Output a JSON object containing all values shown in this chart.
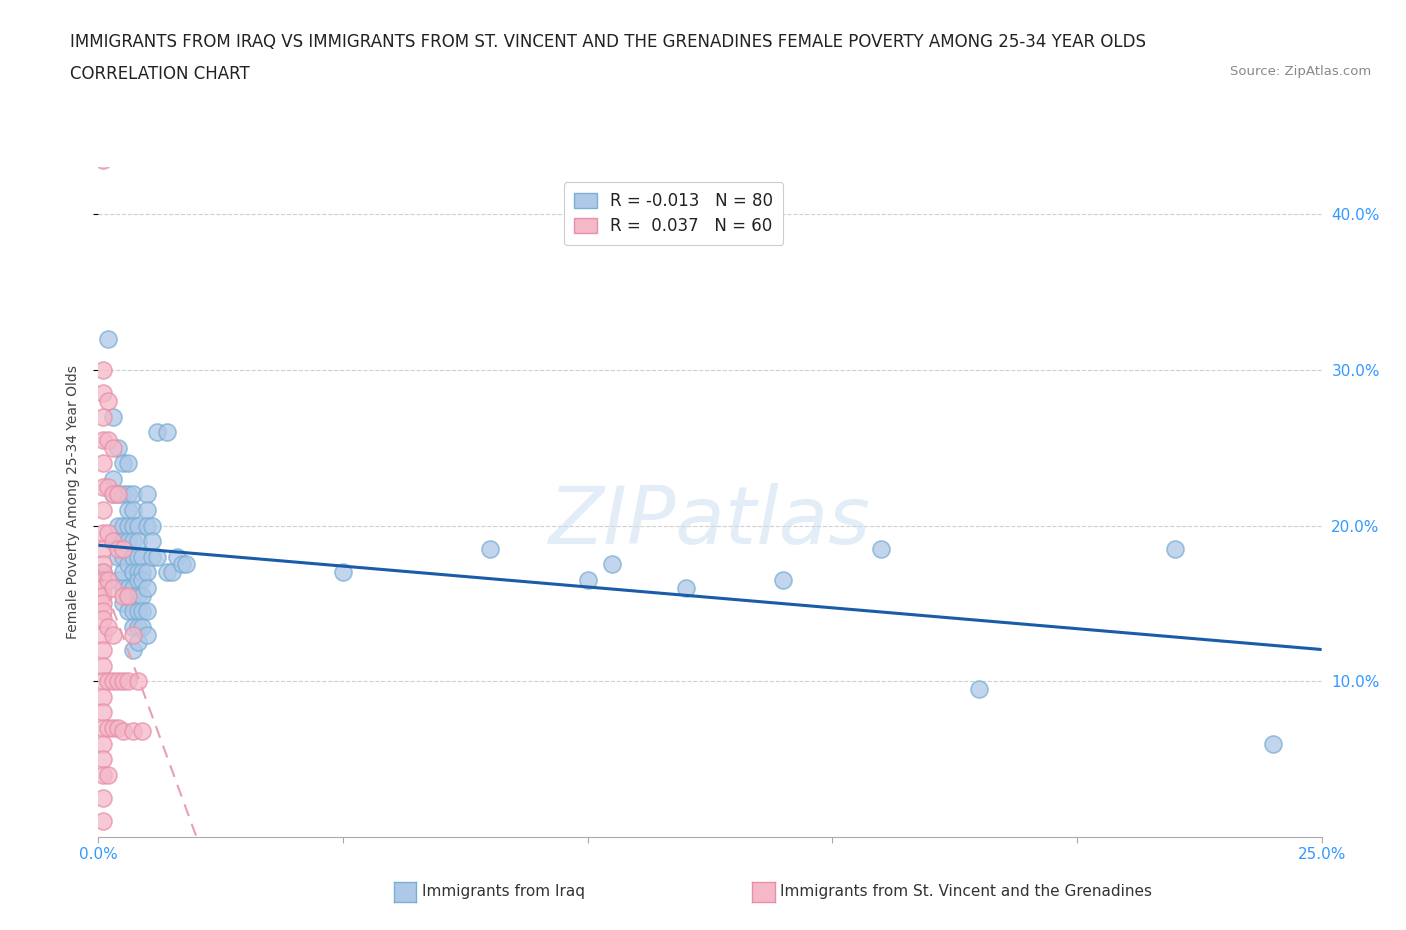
{
  "title_line1": "IMMIGRANTS FROM IRAQ VS IMMIGRANTS FROM ST. VINCENT AND THE GRENADINES FEMALE POVERTY AMONG 25-34 YEAR OLDS",
  "title_line2": "CORRELATION CHART",
  "source_text": "Source: ZipAtlas.com",
  "ylabel": "Female Poverty Among 25-34 Year Olds",
  "watermark": "ZIPatlas",
  "iraq_color_fill": "#aec8e8",
  "iraq_color_edge": "#7aafd4",
  "svg_color_fill": "#f4b8c8",
  "svg_color_edge": "#e890a8",
  "iraq_line_color": "#1a5ca8",
  "svg_line_color": "#e8a0b0",
  "iraq_scatter": [
    [
      0.001,
      0.17
    ],
    [
      0.002,
      0.32
    ],
    [
      0.003,
      0.27
    ],
    [
      0.003,
      0.23
    ],
    [
      0.003,
      0.22
    ],
    [
      0.004,
      0.25
    ],
    [
      0.004,
      0.22
    ],
    [
      0.004,
      0.2
    ],
    [
      0.004,
      0.19
    ],
    [
      0.004,
      0.18
    ],
    [
      0.004,
      0.165
    ],
    [
      0.005,
      0.24
    ],
    [
      0.005,
      0.22
    ],
    [
      0.005,
      0.2
    ],
    [
      0.005,
      0.19
    ],
    [
      0.005,
      0.18
    ],
    [
      0.005,
      0.17
    ],
    [
      0.005,
      0.16
    ],
    [
      0.005,
      0.15
    ],
    [
      0.006,
      0.24
    ],
    [
      0.006,
      0.22
    ],
    [
      0.006,
      0.21
    ],
    [
      0.006,
      0.2
    ],
    [
      0.006,
      0.19
    ],
    [
      0.006,
      0.175
    ],
    [
      0.006,
      0.16
    ],
    [
      0.006,
      0.155
    ],
    [
      0.006,
      0.145
    ],
    [
      0.007,
      0.22
    ],
    [
      0.007,
      0.21
    ],
    [
      0.007,
      0.2
    ],
    [
      0.007,
      0.19
    ],
    [
      0.007,
      0.18
    ],
    [
      0.007,
      0.17
    ],
    [
      0.007,
      0.16
    ],
    [
      0.007,
      0.155
    ],
    [
      0.007,
      0.145
    ],
    [
      0.007,
      0.135
    ],
    [
      0.007,
      0.12
    ],
    [
      0.008,
      0.2
    ],
    [
      0.008,
      0.19
    ],
    [
      0.008,
      0.18
    ],
    [
      0.008,
      0.17
    ],
    [
      0.008,
      0.165
    ],
    [
      0.008,
      0.155
    ],
    [
      0.008,
      0.145
    ],
    [
      0.008,
      0.135
    ],
    [
      0.008,
      0.125
    ],
    [
      0.009,
      0.18
    ],
    [
      0.009,
      0.17
    ],
    [
      0.009,
      0.165
    ],
    [
      0.009,
      0.155
    ],
    [
      0.009,
      0.145
    ],
    [
      0.009,
      0.135
    ],
    [
      0.01,
      0.22
    ],
    [
      0.01,
      0.21
    ],
    [
      0.01,
      0.2
    ],
    [
      0.01,
      0.17
    ],
    [
      0.01,
      0.16
    ],
    [
      0.01,
      0.145
    ],
    [
      0.01,
      0.13
    ],
    [
      0.011,
      0.2
    ],
    [
      0.011,
      0.19
    ],
    [
      0.011,
      0.18
    ],
    [
      0.012,
      0.26
    ],
    [
      0.012,
      0.18
    ],
    [
      0.014,
      0.26
    ],
    [
      0.014,
      0.17
    ],
    [
      0.015,
      0.17
    ],
    [
      0.016,
      0.18
    ],
    [
      0.017,
      0.175
    ],
    [
      0.018,
      0.175
    ],
    [
      0.05,
      0.17
    ],
    [
      0.08,
      0.185
    ],
    [
      0.1,
      0.165
    ],
    [
      0.105,
      0.175
    ],
    [
      0.12,
      0.16
    ],
    [
      0.14,
      0.165
    ],
    [
      0.16,
      0.185
    ],
    [
      0.18,
      0.095
    ],
    [
      0.22,
      0.185
    ],
    [
      0.24,
      0.06
    ]
  ],
  "svg_scatter": [
    [
      0.001,
      0.435
    ],
    [
      0.001,
      0.3
    ],
    [
      0.001,
      0.285
    ],
    [
      0.001,
      0.27
    ],
    [
      0.001,
      0.255
    ],
    [
      0.001,
      0.24
    ],
    [
      0.001,
      0.225
    ],
    [
      0.001,
      0.21
    ],
    [
      0.001,
      0.195
    ],
    [
      0.001,
      0.185
    ],
    [
      0.001,
      0.175
    ],
    [
      0.001,
      0.17
    ],
    [
      0.001,
      0.165
    ],
    [
      0.001,
      0.16
    ],
    [
      0.001,
      0.155
    ],
    [
      0.001,
      0.15
    ],
    [
      0.001,
      0.145
    ],
    [
      0.001,
      0.14
    ],
    [
      0.001,
      0.13
    ],
    [
      0.001,
      0.12
    ],
    [
      0.001,
      0.11
    ],
    [
      0.001,
      0.1
    ],
    [
      0.001,
      0.09
    ],
    [
      0.001,
      0.08
    ],
    [
      0.001,
      0.07
    ],
    [
      0.001,
      0.06
    ],
    [
      0.001,
      0.05
    ],
    [
      0.001,
      0.04
    ],
    [
      0.001,
      0.025
    ],
    [
      0.001,
      0.01
    ],
    [
      0.002,
      0.28
    ],
    [
      0.002,
      0.255
    ],
    [
      0.002,
      0.225
    ],
    [
      0.002,
      0.195
    ],
    [
      0.002,
      0.165
    ],
    [
      0.002,
      0.135
    ],
    [
      0.002,
      0.1
    ],
    [
      0.002,
      0.07
    ],
    [
      0.002,
      0.04
    ],
    [
      0.003,
      0.25
    ],
    [
      0.003,
      0.22
    ],
    [
      0.003,
      0.19
    ],
    [
      0.003,
      0.16
    ],
    [
      0.003,
      0.13
    ],
    [
      0.003,
      0.1
    ],
    [
      0.003,
      0.07
    ],
    [
      0.004,
      0.22
    ],
    [
      0.004,
      0.185
    ],
    [
      0.004,
      0.1
    ],
    [
      0.004,
      0.07
    ],
    [
      0.005,
      0.185
    ],
    [
      0.005,
      0.155
    ],
    [
      0.005,
      0.1
    ],
    [
      0.005,
      0.068
    ],
    [
      0.006,
      0.155
    ],
    [
      0.006,
      0.1
    ],
    [
      0.007,
      0.13
    ],
    [
      0.007,
      0.068
    ],
    [
      0.008,
      0.1
    ],
    [
      0.009,
      0.068
    ]
  ],
  "xlim": [
    0.0,
    0.25
  ],
  "ylim": [
    0.0,
    0.43
  ],
  "yticks": [
    0.1,
    0.2,
    0.3,
    0.4
  ],
  "ytick_labels": [
    "10.0%",
    "20.0%",
    "30.0%",
    "40.0%"
  ],
  "xtick_positions": [
    0.0,
    0.05,
    0.1,
    0.15,
    0.2,
    0.25
  ],
  "xtick_left_label": "0.0%",
  "xtick_right_label": "25.0%",
  "background_color": "#ffffff",
  "grid_color": "#d0d0d0",
  "title_fontsize": 12,
  "axis_label_fontsize": 10,
  "tick_label_fontsize": 11
}
